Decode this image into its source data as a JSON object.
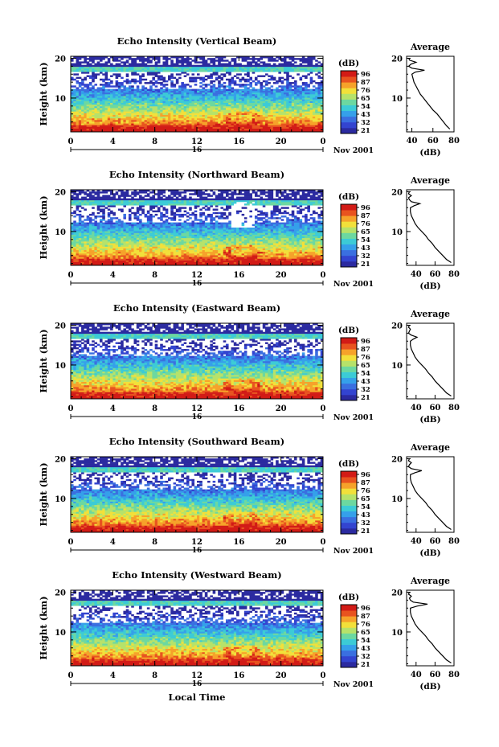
{
  "figure": {
    "x_axis_title": "Local Time",
    "date_label": "Nov 2001",
    "day_label": "16",
    "height_label": "Height (km)",
    "average_title": "Average",
    "average_xlabel": "(dB)",
    "colorbar_unit": "(dB)"
  },
  "colors": {
    "scale": [
      "#2b2aa0",
      "#3344d0",
      "#3a6fe0",
      "#35a0ea",
      "#3ccbd6",
      "#6cd8a0",
      "#b6e26a",
      "#f2e03a",
      "#f6a22a",
      "#e8531f",
      "#d21b16"
    ]
  },
  "chart_data": [
    {
      "type": "heatmap",
      "title": "Echo Intensity (Vertical Beam)",
      "xlabel": "",
      "ylabel": "Height (km)",
      "x_ticks": [
        "0",
        "4",
        "8",
        "12",
        "16",
        "20",
        "0"
      ],
      "y_ticks": [
        "20",
        "10"
      ],
      "colorbar_ticks": [
        "96",
        "87",
        "76",
        "65",
        "54",
        "43",
        "32",
        "21"
      ],
      "xlim": [
        0,
        24
      ],
      "ylim": [
        1.5,
        20.5
      ],
      "average_profile": {
        "x_ticks": [
          "40",
          "60",
          "80"
        ],
        "xlim": [
          35,
          80
        ],
        "points": [
          [
            37,
            20
          ],
          [
            38,
            19.5
          ],
          [
            44,
            19
          ],
          [
            39,
            18.5
          ],
          [
            37,
            18
          ],
          [
            40,
            17.5
          ],
          [
            52,
            17
          ],
          [
            43,
            16.5
          ],
          [
            40,
            16
          ],
          [
            41,
            15
          ],
          [
            42,
            14
          ],
          [
            44,
            13
          ],
          [
            46,
            12
          ],
          [
            48,
            11
          ],
          [
            51,
            10
          ],
          [
            54,
            9
          ],
          [
            57,
            8
          ],
          [
            60,
            7
          ],
          [
            64,
            6
          ],
          [
            67,
            5
          ],
          [
            70,
            4
          ],
          [
            73,
            3
          ],
          [
            76,
            2.2
          ]
        ]
      }
    },
    {
      "type": "heatmap",
      "title": "Echo Intensity (Northward Beam)",
      "xlabel": "",
      "ylabel": "Height (km)",
      "x_ticks": [
        "0",
        "4",
        "8",
        "12",
        "16",
        "20",
        "0"
      ],
      "y_ticks": [
        "20",
        "10"
      ],
      "colorbar_ticks": [
        "96",
        "87",
        "76",
        "65",
        "54",
        "43",
        "32",
        "21"
      ],
      "xlim": [
        0,
        24
      ],
      "ylim": [
        1.5,
        20.5
      ],
      "average_profile": {
        "x_ticks": [
          "40",
          "60",
          "80"
        ],
        "xlim": [
          30,
          80
        ],
        "points": [
          [
            33,
            20
          ],
          [
            32,
            19.5
          ],
          [
            35,
            19
          ],
          [
            32,
            18.5
          ],
          [
            33,
            18
          ],
          [
            35,
            17.5
          ],
          [
            44,
            17
          ],
          [
            38,
            16.5
          ],
          [
            34,
            16
          ],
          [
            34,
            15
          ],
          [
            35,
            14
          ],
          [
            37,
            13
          ],
          [
            39,
            12
          ],
          [
            42,
            11
          ],
          [
            46,
            10
          ],
          [
            50,
            9
          ],
          [
            53,
            8
          ],
          [
            57,
            7
          ],
          [
            60,
            6
          ],
          [
            64,
            5
          ],
          [
            68,
            4
          ],
          [
            72,
            3
          ],
          [
            77,
            2.2
          ]
        ]
      }
    },
    {
      "type": "heatmap",
      "title": "Echo Intensity (Eastward Beam)",
      "xlabel": "",
      "ylabel": "Height (km)",
      "x_ticks": [
        "0",
        "4",
        "8",
        "12",
        "16",
        "20",
        "0"
      ],
      "y_ticks": [
        "20",
        "10"
      ],
      "colorbar_ticks": [
        "96",
        "87",
        "76",
        "65",
        "54",
        "43",
        "32",
        "21"
      ],
      "xlim": [
        0,
        24
      ],
      "ylim": [
        1.5,
        20.5
      ],
      "average_profile": {
        "x_ticks": [
          "40",
          "60",
          "80"
        ],
        "xlim": [
          30,
          80
        ],
        "points": [
          [
            33,
            20
          ],
          [
            32,
            19.5
          ],
          [
            34,
            19
          ],
          [
            33,
            18.5
          ],
          [
            32,
            18
          ],
          [
            35,
            17.5
          ],
          [
            41,
            17
          ],
          [
            37,
            16.5
          ],
          [
            34,
            16
          ],
          [
            34,
            15
          ],
          [
            35,
            14
          ],
          [
            37,
            13
          ],
          [
            39,
            12
          ],
          [
            42,
            11
          ],
          [
            46,
            10
          ],
          [
            50,
            9
          ],
          [
            53,
            8
          ],
          [
            57,
            7
          ],
          [
            60,
            6
          ],
          [
            64,
            5
          ],
          [
            68,
            4
          ],
          [
            72,
            3
          ],
          [
            77,
            2.2
          ]
        ]
      }
    },
    {
      "type": "heatmap",
      "title": "Echo Intensity (Southward Beam)",
      "xlabel": "",
      "ylabel": "Height (km)",
      "x_ticks": [
        "0",
        "4",
        "8",
        "12",
        "16",
        "20",
        "0"
      ],
      "y_ticks": [
        "20",
        "10"
      ],
      "colorbar_ticks": [
        "96",
        "87",
        "76",
        "65",
        "54",
        "43",
        "32",
        "21"
      ],
      "xlim": [
        0,
        24
      ],
      "ylim": [
        1.5,
        20.5
      ],
      "average_profile": {
        "x_ticks": [
          "40",
          "60",
          "80"
        ],
        "xlim": [
          30,
          80
        ],
        "points": [
          [
            33,
            20
          ],
          [
            32,
            19.5
          ],
          [
            35,
            19
          ],
          [
            33,
            18.5
          ],
          [
            32,
            18
          ],
          [
            35,
            17.5
          ],
          [
            46,
            17
          ],
          [
            39,
            16.5
          ],
          [
            34,
            16
          ],
          [
            34,
            15
          ],
          [
            35,
            14
          ],
          [
            37,
            13
          ],
          [
            39,
            12
          ],
          [
            42,
            11
          ],
          [
            46,
            10
          ],
          [
            50,
            9
          ],
          [
            53,
            8
          ],
          [
            57,
            7
          ],
          [
            60,
            6
          ],
          [
            64,
            5
          ],
          [
            68,
            4
          ],
          [
            72,
            3
          ],
          [
            77,
            2.2
          ]
        ]
      }
    },
    {
      "type": "heatmap",
      "title": "Echo Intensity (Westward Beam)",
      "xlabel": "Local Time",
      "ylabel": "Height (km)",
      "x_ticks": [
        "0",
        "4",
        "8",
        "12",
        "16",
        "20",
        "0"
      ],
      "y_ticks": [
        "20",
        "10"
      ],
      "colorbar_ticks": [
        "96",
        "87",
        "76",
        "65",
        "54",
        "43",
        "32",
        "21"
      ],
      "xlim": [
        0,
        24
      ],
      "ylim": [
        1.5,
        20.5
      ],
      "average_profile": {
        "x_ticks": [
          "40",
          "60",
          "80"
        ],
        "xlim": [
          30,
          80
        ],
        "points": [
          [
            33,
            20
          ],
          [
            32,
            19.5
          ],
          [
            35,
            19
          ],
          [
            33,
            18.5
          ],
          [
            34,
            18
          ],
          [
            37,
            17.5
          ],
          [
            52,
            17
          ],
          [
            41,
            16.5
          ],
          [
            34,
            16
          ],
          [
            34,
            15
          ],
          [
            35,
            14
          ],
          [
            37,
            13
          ],
          [
            39,
            12
          ],
          [
            42,
            11
          ],
          [
            46,
            10
          ],
          [
            50,
            9
          ],
          [
            53,
            8
          ],
          [
            57,
            7
          ],
          [
            60,
            6
          ],
          [
            64,
            5
          ],
          [
            68,
            4
          ],
          [
            72,
            3
          ],
          [
            77,
            2.2
          ]
        ]
      }
    }
  ]
}
